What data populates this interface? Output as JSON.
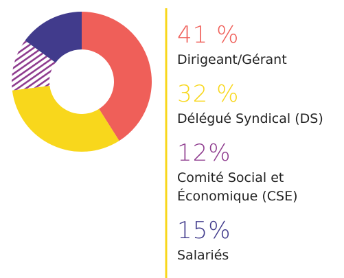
{
  "chart_data": {
    "type": "donut",
    "categories": [
      "Dirigeant/Gérant",
      "Délégué Syndical (DS)",
      "Comité Social et Économique (CSE)",
      "Salariés"
    ],
    "values": [
      41,
      32,
      12,
      15
    ],
    "value_labels": [
      "41 %",
      "32 %",
      "12%",
      "15%"
    ],
    "colors": [
      "#ef5f59",
      "#f8d71c",
      "#8e3b8e",
      "#413b8c"
    ],
    "hatched": [
      false,
      false,
      true,
      false
    ]
  }
}
